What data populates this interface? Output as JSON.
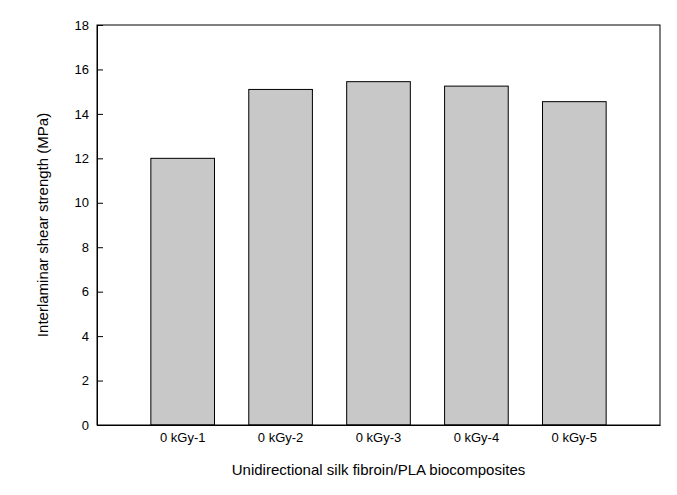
{
  "chart_data": {
    "type": "bar",
    "x_label": "Unidirectional silk fibroin/PLA biocomposites",
    "y_label": "Interlaminar shear strength (MPa)",
    "categories": [
      "0 kGy-1",
      "0 kGy-2",
      "0 kGy-3",
      "0 kGy-4",
      "0 kGy-5"
    ],
    "values": [
      12.0,
      15.1,
      15.45,
      15.25,
      14.55
    ],
    "color": "#c8c8c8",
    "ylim": [
      0,
      18
    ],
    "yticks": [
      0,
      2,
      4,
      6,
      8,
      10,
      12,
      14,
      16,
      18
    ],
    "grid": false
  }
}
